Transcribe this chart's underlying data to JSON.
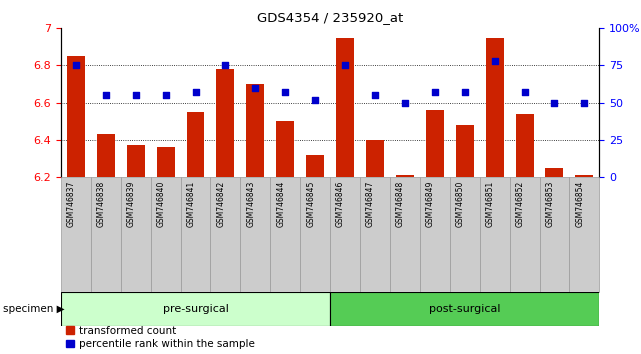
{
  "title": "GDS4354 / 235920_at",
  "samples": [
    "GSM746837",
    "GSM746838",
    "GSM746839",
    "GSM746840",
    "GSM746841",
    "GSM746842",
    "GSM746843",
    "GSM746844",
    "GSM746845",
    "GSM746846",
    "GSM746847",
    "GSM746848",
    "GSM746849",
    "GSM746850",
    "GSM746851",
    "GSM746852",
    "GSM746853",
    "GSM746854"
  ],
  "bar_values": [
    6.85,
    6.43,
    6.37,
    6.36,
    6.55,
    6.78,
    6.7,
    6.5,
    6.32,
    6.95,
    6.4,
    6.21,
    6.56,
    6.48,
    6.95,
    6.54,
    6.25,
    6.21
  ],
  "dot_pct": [
    75,
    55,
    55,
    55,
    57,
    75,
    60,
    57,
    52,
    75,
    55,
    50,
    57,
    57,
    78,
    57,
    50,
    50
  ],
  "groups": [
    {
      "label": "pre-surgical",
      "start": 0,
      "end": 9,
      "color": "#ccffcc"
    },
    {
      "label": "post-surgical",
      "start": 9,
      "end": 18,
      "color": "#55cc55"
    }
  ],
  "ylim_left": [
    6.2,
    7.0
  ],
  "ylim_right": [
    0,
    100
  ],
  "yticks_left": [
    6.2,
    6.4,
    6.6,
    6.8,
    7.0
  ],
  "ytick_left_labels": [
    "6.2",
    "6.4",
    "6.6",
    "6.8",
    "7"
  ],
  "yticks_right": [
    0,
    25,
    50,
    75,
    100
  ],
  "ytick_right_labels": [
    "0",
    "25",
    "50",
    "75",
    "100%"
  ],
  "bar_color": "#cc2200",
  "dot_color": "#0000cc",
  "bg_color": "#ffffff",
  "label_transformed": "transformed count",
  "label_percentile": "percentile rank within the sample",
  "specimen_label": "specimen ▶",
  "xtick_bg": "#cccccc",
  "xtick_border": "#999999"
}
